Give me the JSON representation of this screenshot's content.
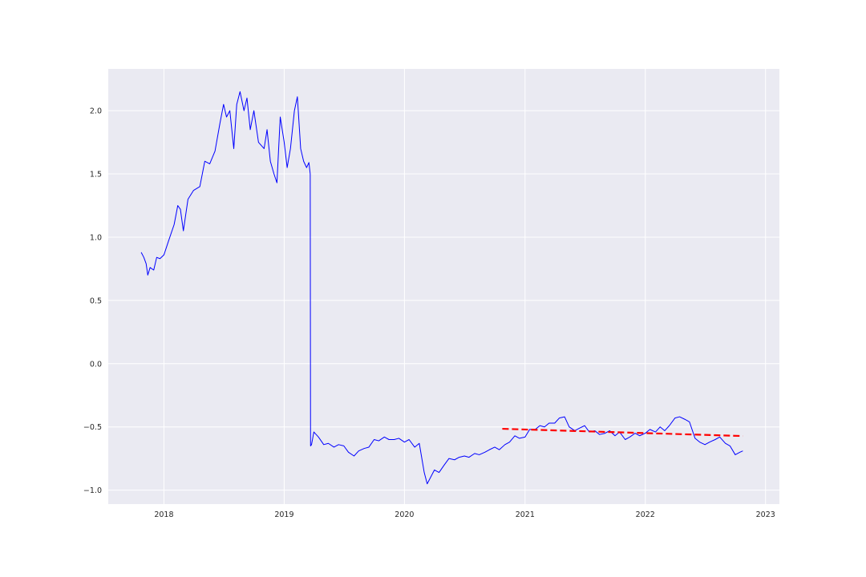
{
  "chart_data": {
    "type": "line",
    "title": "",
    "xlabel": "",
    "ylabel": "",
    "xlim": [
      "2017-07-16",
      "2023-02-12"
    ],
    "ylim": [
      -1.11,
      2.33
    ],
    "grid": true,
    "x_ticks": [
      "2018",
      "2019",
      "2020",
      "2021",
      "2022",
      "2023"
    ],
    "y_ticks": [
      "−1.0",
      "−0.5",
      "0.0",
      "0.5",
      "1.0",
      "1.5",
      "2.0"
    ],
    "colors": {
      "background": "#eaeaf2",
      "grid": "#ffffff",
      "series": "#0000ff",
      "trend": "#ff0000"
    },
    "series": [
      {
        "style": "solid",
        "x": [
          "2017-10-24",
          "2017-11-01",
          "2017-11-08",
          "2017-11-13",
          "2017-11-20",
          "2017-12-01",
          "2017-12-10",
          "2017-12-20",
          "2018-01-01",
          "2018-01-15",
          "2018-02-01",
          "2018-02-12",
          "2018-02-20",
          "2018-03-01",
          "2018-03-15",
          "2018-04-01",
          "2018-04-20",
          "2018-05-05",
          "2018-05-20",
          "2018-06-05",
          "2018-06-20",
          "2018-07-01",
          "2018-07-10",
          "2018-07-20",
          "2018-08-01",
          "2018-08-10",
          "2018-08-20",
          "2018-09-01",
          "2018-09-10",
          "2018-09-20",
          "2018-10-01",
          "2018-10-15",
          "2018-11-01",
          "2018-11-10",
          "2018-11-20",
          "2018-12-01",
          "2018-12-10",
          "2018-12-20",
          "2019-01-01",
          "2019-01-10",
          "2019-01-20",
          "2019-02-01",
          "2019-02-10",
          "2019-02-20",
          "2019-03-01",
          "2019-03-10",
          "2019-03-17",
          "2019-03-21",
          "2019-03-22",
          "2019-03-25",
          "2019-04-01",
          "2019-04-15",
          "2019-05-01",
          "2019-05-15",
          "2019-06-01",
          "2019-06-15",
          "2019-07-01",
          "2019-07-15",
          "2019-08-01",
          "2019-08-15",
          "2019-09-01",
          "2019-09-15",
          "2019-10-01",
          "2019-10-15",
          "2019-11-01",
          "2019-11-15",
          "2019-12-01",
          "2019-12-15",
          "2020-01-01",
          "2020-01-15",
          "2020-02-01",
          "2020-02-15",
          "2020-03-01",
          "2020-03-10",
          "2020-03-20",
          "2020-04-01",
          "2020-04-15",
          "2020-05-01",
          "2020-05-15",
          "2020-06-01",
          "2020-06-15",
          "2020-07-01",
          "2020-07-15",
          "2020-08-01",
          "2020-08-15",
          "2020-09-01",
          "2020-09-15",
          "2020-10-01",
          "2020-10-15",
          "2020-11-01",
          "2020-11-15",
          "2020-12-01",
          "2020-12-15",
          "2021-01-01",
          "2021-01-15",
          "2021-02-01",
          "2021-02-15",
          "2021-03-01",
          "2021-03-15",
          "2021-04-01",
          "2021-04-15",
          "2021-05-01",
          "2021-05-15",
          "2021-06-01",
          "2021-06-15",
          "2021-07-01",
          "2021-07-15",
          "2021-08-01",
          "2021-08-15",
          "2021-09-01",
          "2021-09-15",
          "2021-10-01",
          "2021-10-15",
          "2021-11-01",
          "2021-11-15",
          "2021-12-01",
          "2021-12-15",
          "2022-01-01",
          "2022-01-15",
          "2022-02-01",
          "2022-02-15",
          "2022-03-01",
          "2022-03-15",
          "2022-04-01",
          "2022-04-15",
          "2022-05-01",
          "2022-05-15",
          "2022-06-01",
          "2022-06-15",
          "2022-07-01",
          "2022-07-15",
          "2022-08-01",
          "2022-08-15",
          "2022-09-01",
          "2022-09-15",
          "2022-10-01",
          "2022-10-15",
          "2022-10-24"
        ],
        "y": [
          0.88,
          0.84,
          0.79,
          0.7,
          0.76,
          0.74,
          0.84,
          0.83,
          0.86,
          0.97,
          1.1,
          1.25,
          1.22,
          1.05,
          1.3,
          1.37,
          1.4,
          1.6,
          1.58,
          1.68,
          1.9,
          2.05,
          1.95,
          2.0,
          1.7,
          2.05,
          2.15,
          2.0,
          2.1,
          1.85,
          2.0,
          1.75,
          1.7,
          1.85,
          1.6,
          1.5,
          1.43,
          1.95,
          1.75,
          1.55,
          1.7,
          2.0,
          2.11,
          1.7,
          1.6,
          1.55,
          1.59,
          1.5,
          -0.65,
          -0.64,
          -0.54,
          -0.58,
          -0.64,
          -0.63,
          -0.66,
          -0.64,
          -0.65,
          -0.7,
          -0.73,
          -0.69,
          -0.67,
          -0.66,
          -0.6,
          -0.61,
          -0.58,
          -0.6,
          -0.6,
          -0.59,
          -0.62,
          -0.6,
          -0.66,
          -0.63,
          -0.86,
          -0.95,
          -0.9,
          -0.84,
          -0.86,
          -0.8,
          -0.75,
          -0.76,
          -0.74,
          -0.73,
          -0.74,
          -0.71,
          -0.72,
          -0.7,
          -0.68,
          -0.66,
          -0.68,
          -0.64,
          -0.62,
          -0.57,
          -0.59,
          -0.58,
          -0.52,
          -0.52,
          -0.49,
          -0.5,
          -0.47,
          -0.47,
          -0.43,
          -0.42,
          -0.5,
          -0.53,
          -0.51,
          -0.49,
          -0.54,
          -0.53,
          -0.56,
          -0.55,
          -0.53,
          -0.57,
          -0.54,
          -0.6,
          -0.58,
          -0.55,
          -0.57,
          -0.55,
          -0.52,
          -0.54,
          -0.5,
          -0.53,
          -0.49,
          -0.43,
          -0.42,
          -0.44,
          -0.46,
          -0.59,
          -0.62,
          -0.64,
          -0.62,
          -0.6,
          -0.58,
          -0.63,
          -0.65,
          -0.72,
          -0.7,
          -0.69
        ]
      },
      {
        "style": "dashed",
        "x": [
          "2020-10-24",
          "2022-10-24"
        ],
        "y": [
          -0.515,
          -0.572
        ]
      }
    ]
  }
}
